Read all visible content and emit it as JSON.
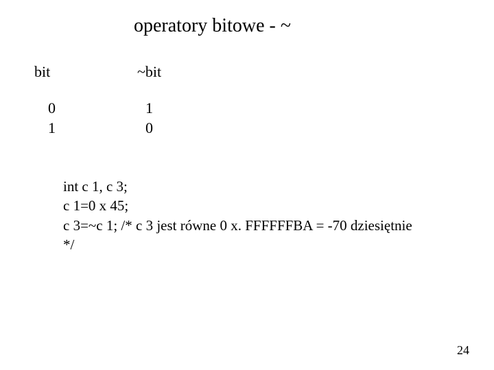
{
  "title": "operatory bitowe  -    ~",
  "table": {
    "headers": {
      "col1": "bit",
      "col2": "~bit"
    },
    "rows": [
      {
        "col1": "0",
        "col2": "1"
      },
      {
        "col1": "1",
        "col2": "0"
      }
    ]
  },
  "code": {
    "line1": "int c 1, c 3;",
    "line2": "c 1=0 x 45;",
    "line3": "c 3=~c 1;  /* c 3 jest równe  0 x. FFFFFFBA = -70 dziesiętnie",
    "line4": "*/"
  },
  "page_number": "24",
  "styling": {
    "background_color": "#ffffff",
    "text_color": "#000000",
    "title_fontsize": 28,
    "body_fontsize": 22,
    "code_fontsize": 21,
    "page_number_fontsize": 18,
    "font_family": "Times New Roman"
  }
}
